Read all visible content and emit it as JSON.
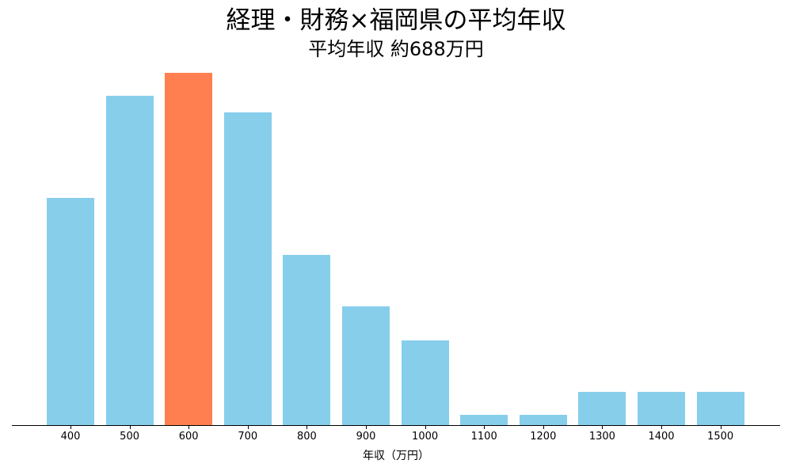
{
  "title": "経理・財務×福岡県の平均年収",
  "subtitle": "平均年収 約688万円",
  "xlabel": "年収（万円）",
  "colors": {
    "default": "#87CEEB",
    "highlight": "#FF7F50",
    "axis": "#000000"
  },
  "chart_data": {
    "type": "bar",
    "title": "経理・財務×福岡県の平均年収",
    "subtitle": "平均年収 約688万円",
    "xlabel": "年収（万円）",
    "ylabel": "",
    "categories": [
      "400",
      "500",
      "600",
      "700",
      "800",
      "900",
      "1000",
      "1100",
      "1200",
      "1300",
      "1400",
      "1500"
    ],
    "values": [
      20,
      29,
      31,
      27.5,
      15,
      10.5,
      7.5,
      1,
      1,
      3,
      3,
      3
    ],
    "highlight_category": "600",
    "ylim": [
      0,
      31
    ],
    "y_axis_visible": false,
    "grid": false,
    "legend": null
  }
}
